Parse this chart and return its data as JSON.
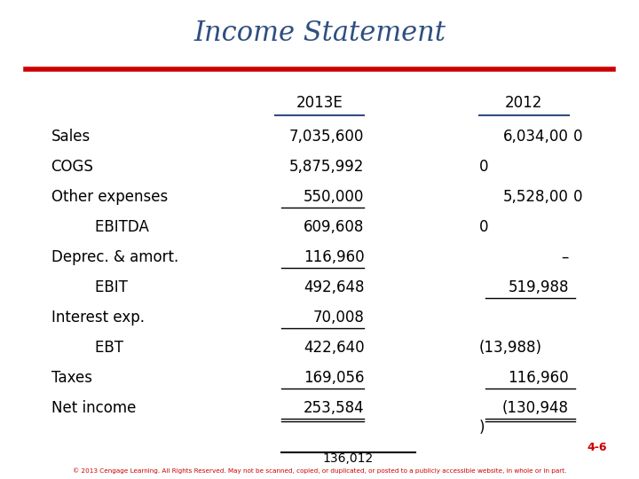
{
  "title": "Income Statement",
  "title_color": "#2F4F7F",
  "title_fontsize": 22,
  "red_line_color": "#CC0000",
  "background_color": "#FFFFFF",
  "col_header_2013": "2013E",
  "col_header_2012": "2012",
  "header_underline_color": "#2F4F7F",
  "rows": [
    {
      "label": "Sales",
      "indent": false,
      "val2013": "7,035,600"
    },
    {
      "label": "COGS",
      "indent": false,
      "val2013": "5,875,992"
    },
    {
      "label": "Other expenses",
      "indent": false,
      "val2013": "550,000",
      "underline2013": true
    },
    {
      "label": "    EBITDA",
      "indent": true,
      "val2013": "609,608"
    },
    {
      "label": "Deprec. & amort.",
      "indent": false,
      "val2013": "116,960",
      "underline2013": true
    },
    {
      "label": "    EBIT",
      "indent": true,
      "val2013": "492,648"
    },
    {
      "label": "Interest exp.",
      "indent": false,
      "val2013": "70,008",
      "underline2013": true
    },
    {
      "label": "    EBT",
      "indent": true,
      "val2013": "422,640"
    },
    {
      "label": "Taxes",
      "indent": false,
      "val2013": "169,056",
      "underline2013": true
    },
    {
      "label": "Net income",
      "indent": false,
      "val2013": "253,584",
      "underline2013": true,
      "double_underline2013": true
    }
  ],
  "footer_text": "© 2013 Cengage Learning. All Rights Reserved. May not be scanned, copied, or duplicated, or posted to a publicly accessible website, in whole or in part.",
  "footer_color": "#CC0000",
  "page_num": "4-6",
  "text_color": "#000000",
  "label_fontsize": 12,
  "value_fontsize": 12,
  "header_fontsize": 12
}
